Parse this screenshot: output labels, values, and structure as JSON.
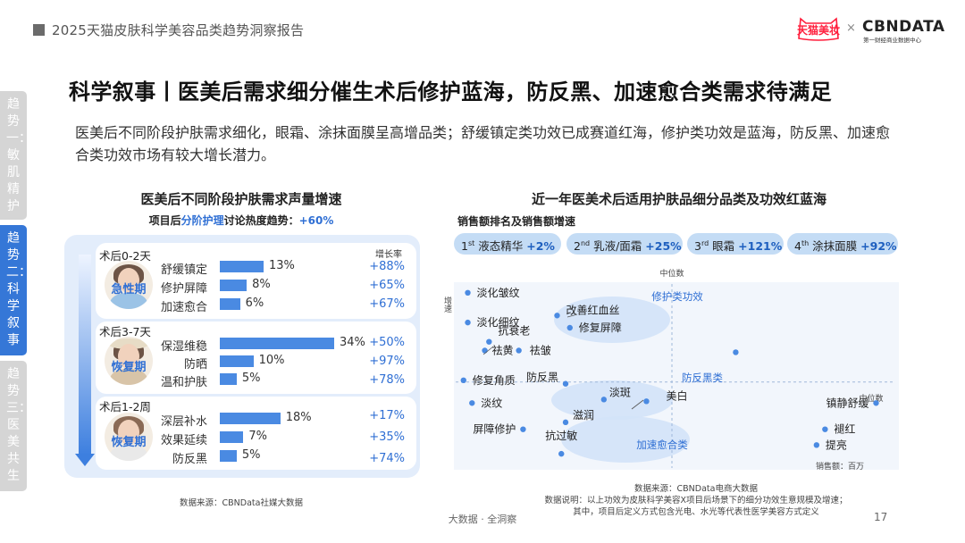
{
  "header": {
    "report_title": "2025天猫皮肤科学美容品类趋势洞察报告",
    "tmall_logo_text": "天猫美妆",
    "cbn_logo_text": "CBNDATA",
    "cbn_logo_sub": "第一财经商业数据中心"
  },
  "side_tabs": [
    {
      "label": "趋势一：敏肌精护"
    },
    {
      "label": "趋势二：科学叙事"
    },
    {
      "label": "趋势三：医美共生"
    }
  ],
  "title": "科学叙事丨医美后需求细分催生术后修护蓝海，防反黑、加速愈合类需求待满足",
  "lead": "医美后不同阶段护肤需求细化，眼霜、涂抹面膜呈高增品类；舒缓镇定类功效已成赛道红海，修护类功效是蓝海，防反黑、加速愈合类功效市场有较大增长潜力。",
  "left_panel": {
    "title": "医美后不同阶段护肤需求声量增速",
    "sub_prefix": "项目后",
    "sub_highlight": "分阶护理",
    "sub_suffix": "讨论热度趋势：",
    "sub_value": "+60%",
    "growth_header": "增长率",
    "source": "数据来源：CBNData社媒大数据",
    "stages": [
      {
        "stage": "术后0-2天",
        "phase": "急性期",
        "rows": [
          {
            "label": "舒缓镇定",
            "pct": "13%",
            "share": 13,
            "growth": "+88%"
          },
          {
            "label": "修护屏障",
            "pct": "8%",
            "share": 8,
            "growth": "+65%"
          },
          {
            "label": "加速愈合",
            "pct": "6%",
            "share": 6,
            "growth": "+67%"
          }
        ]
      },
      {
        "stage": "术后3-7天",
        "phase": "恢复期",
        "rows": [
          {
            "label": "保湿维稳",
            "pct": "34%",
            "share": 34,
            "growth": "+50%"
          },
          {
            "label": "防晒",
            "pct": "10%",
            "share": 10,
            "growth": "+97%"
          },
          {
            "label": "温和护肤",
            "pct": "5%",
            "share": 5,
            "growth": "+78%"
          }
        ]
      },
      {
        "stage": "术后1-2周",
        "phase": "恢复期",
        "rows": [
          {
            "label": "深层补水",
            "pct": "18%",
            "share": 18,
            "growth": "+17%"
          },
          {
            "label": "效果延续",
            "pct": "7%",
            "share": 7,
            "growth": "+35%"
          },
          {
            "label": "防反黑",
            "pct": "5%",
            "share": 5,
            "growth": "+74%"
          }
        ]
      }
    ]
  },
  "right_panel": {
    "title": "近一年医美术后适用护肤品细分品类及功效红蓝海",
    "subtitle": "销售额排名及销售额增速",
    "pills": [
      {
        "rank": "1",
        "sup": "st",
        "name": "液态精华",
        "growth": "+2%"
      },
      {
        "rank": "2",
        "sup": "nd",
        "name": "乳液/面霜",
        "growth": "+25%"
      },
      {
        "rank": "3",
        "sup": "rd",
        "name": "眼霜",
        "growth": "+121%"
      },
      {
        "rank": "4",
        "sup": "th",
        "name": "涂抹面膜",
        "growth": "+92%"
      }
    ],
    "source_lines": [
      "数据来源：CBNData电商大数据",
      "数据说明：以上功效为皮肤科学美容X项目后场景下的细分功效生意规模及增速；",
      "其中，项目后定义方式包含光电、水光等代表性医学美容方式定义"
    ]
  },
  "chart_data": [
    {
      "type": "bar",
      "title": "医美后不同阶段护肤需求声量增速",
      "categories": [
        "舒缓镇定",
        "修护屏障",
        "加速愈合",
        "保湿维稳",
        "防晒",
        "温和护肤",
        "深层补水",
        "效果延续",
        "防反黑"
      ],
      "series": [
        {
          "values": [
            13,
            8,
            6,
            34,
            10,
            5,
            18,
            7,
            5
          ]
        }
      ],
      "growth_rates": [
        "+88%",
        "+65%",
        "+67%",
        "+50%",
        "+97%",
        "+78%",
        "+17%",
        "+35%",
        "+74%"
      ],
      "groups": [
        "术后0-2天",
        "术后3-7天",
        "术后1-2周"
      ]
    },
    {
      "type": "scatter",
      "title": "近一年医美术后适用护肤品细分品类及功效红蓝海",
      "xlabel": "销售额：百万",
      "ylabel": "增速",
      "x_median_label": "中位数",
      "y_median_label": "中位数",
      "x_median": 0.5,
      "y_median": 0.44,
      "xlim": [
        0,
        1
      ],
      "ylim": [
        0,
        1
      ],
      "points": [
        {
          "label": "淡化皱纹",
          "x": 0.02,
          "y": 0.95
        },
        {
          "label": "淡化细纹",
          "x": 0.02,
          "y": 0.78
        },
        {
          "label": "改善红血丝",
          "x": 0.23,
          "y": 0.82
        },
        {
          "label": "修复屏障",
          "x": 0.26,
          "y": 0.75
        },
        {
          "label": "抗衰老",
          "x": 0.07,
          "y": 0.67
        },
        {
          "label": "祛黄",
          "x": 0.06,
          "y": 0.62
        },
        {
          "label": "祛皱",
          "x": 0.14,
          "y": 0.62
        },
        {
          "label": "",
          "x": 0.65,
          "y": 0.61
        },
        {
          "label": "修复角质",
          "x": 0.01,
          "y": 0.45
        },
        {
          "label": "防反黑",
          "x": 0.25,
          "y": 0.43
        },
        {
          "label": "淡斑",
          "x": 0.34,
          "y": 0.34
        },
        {
          "label": "美白",
          "x": 0.44,
          "y": 0.33
        },
        {
          "label": "淡纹",
          "x": 0.03,
          "y": 0.32
        },
        {
          "label": "滋润",
          "x": 0.25,
          "y": 0.21
        },
        {
          "label": "屏障修护",
          "x": 0.15,
          "y": 0.17
        },
        {
          "label": "抗过敏",
          "x": 0.24,
          "y": 0.03
        },
        {
          "label": "镇静舒缓",
          "x": 0.98,
          "y": 0.32
        },
        {
          "label": "褪红",
          "x": 0.86,
          "y": 0.17
        },
        {
          "label": "提亮",
          "x": 0.84,
          "y": 0.08
        }
      ],
      "clusters": [
        "修护类功效",
        "防反黑类",
        "加速愈合类"
      ]
    }
  ],
  "footer": {
    "text": "大数据 · 全洞察",
    "page": "17"
  },
  "colors": {
    "accent": "#2f6fd4",
    "bar": "#4a8ae2",
    "tab_active": "#3577d7",
    "panel_bg": "#e3edfb"
  }
}
